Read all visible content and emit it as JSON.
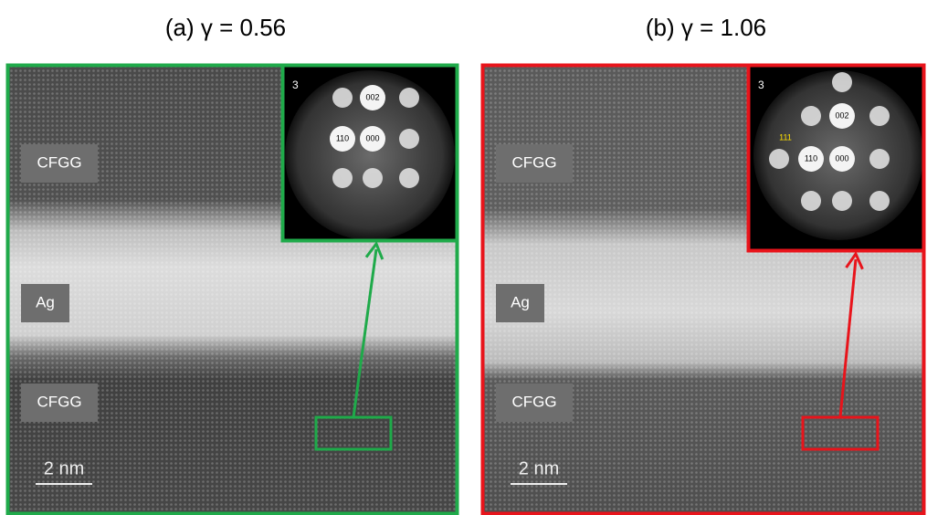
{
  "panels": [
    {
      "title": "(a) γ = 0.56",
      "color": "#1faa4a",
      "labels": [
        "CFGG",
        "Ag",
        "CFGG"
      ],
      "scale_bar": "2 nm",
      "inset": {
        "number": "3",
        "spots": [
          "002",
          "110",
          "000"
        ]
      }
    },
    {
      "title": "(b) γ = 1.06",
      "color": "#e8141b",
      "labels": [
        "CFGG",
        "Ag",
        "CFGG"
      ],
      "scale_bar": "2 nm",
      "inset": {
        "number": "3",
        "spots": [
          "002",
          "111",
          "110",
          "000"
        ]
      }
    }
  ]
}
